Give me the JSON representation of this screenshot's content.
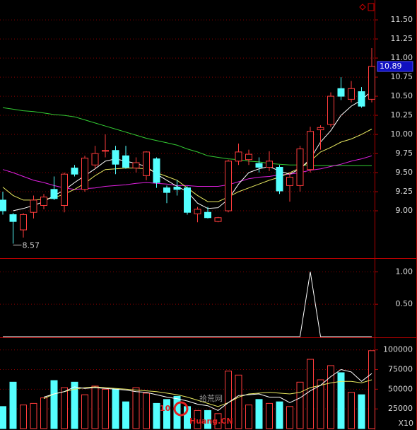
{
  "chart_data": [
    {
      "type": "candlestick",
      "ylim": [
        8.38,
        11.76
      ],
      "yticks": [
        {
          "value": 9,
          "label": "9.00"
        },
        {
          "value": 9.25,
          "label": "9.25"
        },
        {
          "value": 9.5,
          "label": "9.50"
        },
        {
          "value": 9.75,
          "label": "9.75"
        },
        {
          "value": 10,
          "label": "10.00"
        },
        {
          "value": 10.25,
          "label": "10.25"
        },
        {
          "value": 10.5,
          "label": "10.50"
        },
        {
          "value": 10.75,
          "label": "10.75"
        },
        {
          "value": 11,
          "label": "11.00"
        },
        {
          "value": 11.25,
          "label": "11.25"
        },
        {
          "value": 11.5,
          "label": "11.50"
        }
      ],
      "grid": true,
      "up_color": "#ff3c3c",
      "down_color": "#54ffff",
      "open": [
        9.14,
        8.95,
        8.75,
        8.98,
        9.07,
        9.28,
        9.07,
        9.56,
        9.28,
        9.6,
        9.78,
        9.79,
        9.72,
        9.56,
        9.46,
        9.68,
        9.3,
        9.31,
        9.3,
        8.96,
        8.98,
        8.86,
        9.0,
        9.65,
        9.67,
        9.62,
        9.57,
        9.57,
        9.33,
        9.33,
        9.54,
        10.06,
        10.13,
        10.6,
        10.46,
        10.56,
        10.46
      ],
      "high": [
        9.25,
        8.97,
        8.97,
        9.2,
        9.22,
        9.45,
        9.5,
        9.6,
        9.72,
        9.85,
        10.0,
        9.85,
        9.85,
        9.7,
        9.78,
        9.7,
        9.33,
        9.4,
        9.32,
        9.05,
        9.05,
        8.92,
        9.67,
        9.88,
        9.8,
        9.7,
        9.78,
        9.6,
        9.5,
        9.85,
        10.1,
        10.12,
        10.55,
        10.75,
        10.7,
        10.62,
        11.13
      ],
      "low": [
        8.95,
        8.57,
        8.65,
        8.9,
        9.02,
        9.14,
        8.98,
        9.45,
        9.25,
        9.55,
        9.7,
        9.48,
        9.55,
        9.5,
        9.4,
        9.3,
        9.1,
        9.2,
        8.95,
        8.85,
        8.9,
        8.85,
        8.98,
        9.6,
        9.6,
        9.5,
        9.52,
        9.22,
        9.12,
        9.25,
        9.5,
        9.8,
        10.1,
        10.45,
        10.42,
        10.35,
        10.42
      ],
      "close": [
        9.0,
        8.86,
        8.95,
        9.14,
        9.18,
        9.16,
        9.48,
        9.48,
        9.69,
        9.75,
        9.79,
        9.61,
        9.57,
        9.63,
        9.77,
        9.37,
        9.24,
        9.28,
        8.98,
        9.02,
        8.91,
        8.91,
        9.65,
        9.77,
        9.74,
        9.57,
        9.65,
        9.26,
        9.44,
        9.81,
        10.04,
        10.09,
        10.5,
        10.5,
        10.6,
        10.37,
        10.89
      ],
      "lines": [
        {
          "color": "#33cc33",
          "values": [
            10.35,
            10.33,
            10.31,
            10.3,
            10.28,
            10.26,
            10.25,
            10.23,
            10.19,
            10.15,
            10.11,
            10.07,
            10.03,
            9.99,
            9.95,
            9.92,
            9.89,
            9.86,
            9.81,
            9.77,
            9.72,
            9.7,
            9.68,
            9.67,
            9.65,
            9.64,
            9.62,
            9.61,
            9.6,
            9.6,
            9.59,
            9.59,
            9.59,
            9.59,
            9.59,
            9.59,
            9.59
          ]
        },
        {
          "color": "#e020e0",
          "values": [
            9.54,
            9.5,
            9.45,
            9.4,
            9.37,
            9.33,
            9.3,
            9.28,
            9.29,
            9.3,
            9.32,
            9.33,
            9.34,
            9.36,
            9.37,
            9.36,
            9.35,
            9.33,
            9.33,
            9.32,
            9.32,
            9.32,
            9.34,
            9.38,
            9.42,
            9.44,
            9.45,
            9.47,
            9.48,
            9.5,
            9.53,
            9.55,
            9.58,
            9.61,
            9.65,
            9.68,
            9.72
          ]
        },
        {
          "color": "#e8e860",
          "values": [
            9.31,
            9.2,
            9.14,
            9.14,
            9.15,
            9.17,
            9.22,
            9.28,
            9.36,
            9.46,
            9.54,
            9.55,
            9.56,
            9.56,
            9.55,
            9.5,
            9.45,
            9.4,
            9.3,
            9.2,
            9.12,
            9.12,
            9.18,
            9.25,
            9.3,
            9.35,
            9.4,
            9.44,
            9.5,
            9.56,
            9.65,
            9.77,
            9.83,
            9.9,
            9.94,
            10.0,
            10.07
          ]
        },
        {
          "color": "#ffffff",
          "values": [
            null,
            9.0,
            9.03,
            9.07,
            9.12,
            9.2,
            9.27,
            9.37,
            9.46,
            9.55,
            9.65,
            9.68,
            9.65,
            9.62,
            9.58,
            9.48,
            9.4,
            9.32,
            9.25,
            9.1,
            9.03,
            9.04,
            9.15,
            9.35,
            9.5,
            9.55,
            9.58,
            9.52,
            9.48,
            9.55,
            9.68,
            9.9,
            10.05,
            10.25,
            10.37,
            10.45,
            10.57
          ]
        }
      ]
    },
    {
      "type": "line",
      "ylim": [
        0,
        1.2
      ],
      "yticks": [
        {
          "value": 0.5,
          "label": "0.50"
        },
        {
          "value": 1,
          "label": "1.00"
        }
      ],
      "grid": true,
      "color": "#ffffff",
      "values": [
        0,
        0,
        0,
        0,
        0,
        0,
        0,
        0,
        0,
        0,
        0,
        0,
        0,
        0,
        0,
        0,
        0,
        0,
        0,
        0,
        0,
        0,
        0,
        0,
        0,
        0,
        0,
        0,
        0,
        0,
        1,
        0,
        0,
        0,
        0,
        0,
        0
      ]
    },
    {
      "type": "bar",
      "ylim": [
        0,
        115000
      ],
      "yticks": [
        25000,
        50000,
        75000,
        100000
      ],
      "grid": true,
      "unit": "X10",
      "values": [
        28000,
        59000,
        30000,
        32000,
        39000,
        61000,
        52000,
        59000,
        43000,
        54000,
        50000,
        50000,
        34000,
        52000,
        45000,
        32000,
        37000,
        41000,
        28000,
        23000,
        23000,
        19000,
        73000,
        68000,
        30000,
        37000,
        32000,
        34000,
        28000,
        59000,
        88000,
        62000,
        80000,
        71000,
        46000,
        43000,
        99000
      ],
      "lines": [
        {
          "color": "#e8e860",
          "values": [
            null,
            null,
            null,
            null,
            38000,
            44000,
            47000,
            50000,
            52000,
            53000,
            52000,
            51000,
            50000,
            49000,
            48000,
            47000,
            45000,
            43000,
            40000,
            36000,
            32000,
            28000,
            33000,
            40000,
            44000,
            45000,
            46000,
            45000,
            44000,
            46000,
            52000,
            55000,
            58000,
            60000,
            60000,
            58000,
            62000
          ]
        },
        {
          "color": "#ffffff",
          "values": [
            null,
            null,
            null,
            null,
            40000,
            44000,
            47000,
            53000,
            51000,
            52000,
            51000,
            50000,
            49000,
            47000,
            46000,
            43000,
            40000,
            38000,
            35000,
            31000,
            29000,
            23000,
            33000,
            42000,
            43000,
            44000,
            40000,
            40000,
            33000,
            39000,
            48000,
            55000,
            66000,
            75000,
            72000,
            60000,
            70000
          ]
        }
      ]
    }
  ],
  "watermark": {
    "logo": "10",
    "name": "拾荒网",
    "domain": "Huang.CN"
  }
}
